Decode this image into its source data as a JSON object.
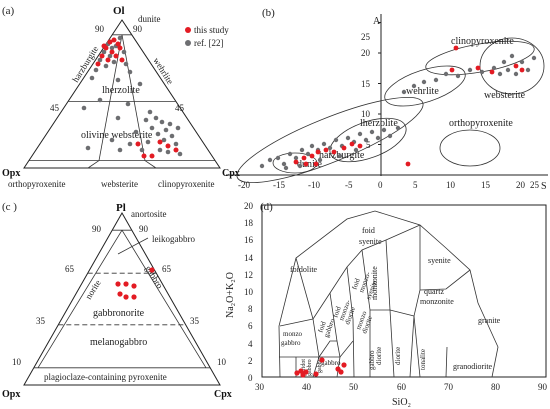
{
  "panel_a": {
    "label": "(a)",
    "apex_top": "Ol",
    "apex_left": "Opx",
    "apex_right": "Cpx",
    "top_tick_left": "90",
    "top_tick_right": "90",
    "mid_tick_left": "45",
    "mid_tick_right": "45",
    "field_dunite": "dunite",
    "field_harzburgite": "harzburgite",
    "field_wehrlite": "wehrlite",
    "field_lherzolite": "lherzolite",
    "field_olivine_websterite": "olivine websterite",
    "bottom_orthopyroxenite": "orthopyroxenite",
    "bottom_websterite": "websterite",
    "bottom_clinopyroxenite": "clinopyroxenite",
    "legend_this_study": "this study",
    "legend_ref": "ref. [22]",
    "colors": {
      "this_study": "#e31b23",
      "ref": "#6d6e71"
    }
  },
  "panel_b": {
    "label": "(b)",
    "axis_y_title": "A",
    "axis_x_title": "S",
    "y_ticks": [
      "5",
      "10",
      "15",
      "20",
      "25"
    ],
    "x_ticks": [
      "-20",
      "-15",
      "-10",
      "-5",
      "0",
      "5",
      "10",
      "15",
      "20",
      "25"
    ],
    "field_clinopyroxenite": "clinopyroxenite",
    "field_wehrlite": "wehrlite",
    "field_websterite": "websterite",
    "field_lherzolite": "lherzolite",
    "field_orthopyroxenite": "orthopyroxenite",
    "field_dunite": "dunite",
    "field_harzburgite": "harzburgite"
  },
  "panel_c": {
    "label": "(c )",
    "apex_top": "Pl",
    "apex_left": "Opx",
    "apex_right": "Cpx",
    "tick_90_left": "90",
    "tick_90_right": "90",
    "tick_65_left": "65",
    "tick_65_right": "65",
    "tick_35_left": "35",
    "tick_35_right": "35",
    "tick_10_left": "10",
    "tick_10_right": "10",
    "field_anortosite": "anortosite",
    "field_leikogabbro": "leikogabbro",
    "field_norite": "norite",
    "field_gabbro": "gabbro",
    "field_gabbronorite": "gabbronorite",
    "field_melanogabbro": "melanogabbro",
    "field_plagioclaze": "plagioclaze-containing pyroxenite"
  },
  "panel_d": {
    "label": "(d)",
    "y_title": "Na₂O+K₂O",
    "x_title": "SiO₂",
    "y_ticks": [
      "0",
      "2",
      "4",
      "6",
      "8",
      "10",
      "12",
      "14",
      "16",
      "18",
      "20"
    ],
    "x_ticks": [
      "30",
      "40",
      "50",
      "60",
      "70",
      "80",
      "90"
    ],
    "field_foid_syenite_1": "foid",
    "field_foid_syenite_2": "syenite",
    "field_syenite": "syenite",
    "field_foidolite": "foidolite",
    "field_quartz_monzonite_1": "quartz",
    "field_quartz_monzonite_2": "monzonite",
    "field_granite": "granite",
    "field_monzonite": "monzonite",
    "field_foid_monzosyenite_1": "foid",
    "field_foid_monzosyenite_2": "monzo-",
    "field_foid_monzosyenite_3": "syenite",
    "field_foid_monzodiorite_1": "foid",
    "field_foid_monzodiorite_2": "monzo-",
    "field_foid_monzodiorite_3": "diorite",
    "field_monzodiorite_1": "monzo",
    "field_monzodiorite_2": "diorite",
    "field_foid_gabbro_1": "foid",
    "field_foid_gabbro_2": "gabbro",
    "field_monzogabbro_1": "monzo",
    "field_monzogabbro_2": "gabbro",
    "field_gabbro": "gabbro",
    "field_gabbro_diorite_1": "gabbro",
    "field_gabbro_diorite_2": "diorite",
    "field_diorite": "diorite",
    "field_tonalite": "tonalite",
    "field_granodiorite": "granodiorite",
    "field_peridotgabbro_1": "peridot",
    "field_peridotgabbro_2": "gabbro",
    "field_gabbro_small": "gabbro"
  }
}
